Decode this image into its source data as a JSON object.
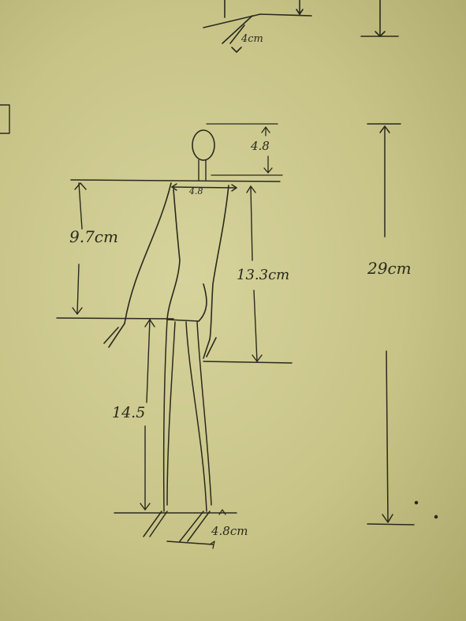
{
  "colors": {
    "paper": "#c9c58a",
    "ink": "#2a2a1c"
  },
  "annotations": {
    "top_partial": "4cm",
    "head_height": "4.8",
    "shoulder_width": "4.8",
    "torso_height": "9.7cm",
    "arm_length": "13.3cm",
    "leg_height": "14.5",
    "foot_length": "4.8cm",
    "total_height": "29cm"
  }
}
